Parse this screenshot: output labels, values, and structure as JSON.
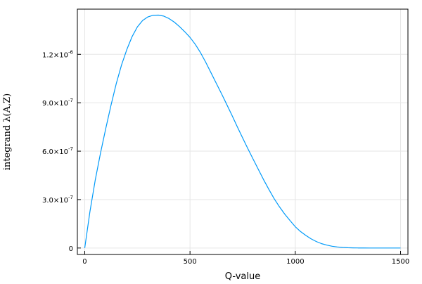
{
  "chart_data": {
    "type": "line",
    "title": "",
    "xlabel": "Q-value",
    "ylabel": "integrand λ(A,Z)",
    "xlim": [
      -35,
      1535
    ],
    "ylim": [
      -4e-08,
      1.48e-06
    ],
    "xticks": [
      {
        "value": 0,
        "label": "0"
      },
      {
        "value": 500,
        "label": "500"
      },
      {
        "value": 1000,
        "label": "1000"
      },
      {
        "value": 1500,
        "label": "1500"
      }
    ],
    "yticks": [
      {
        "value": 0,
        "mantissa": "0",
        "exponent": ""
      },
      {
        "value": 3e-07,
        "mantissa": "3.0×10",
        "exponent": "-7"
      },
      {
        "value": 6e-07,
        "mantissa": "6.0×10",
        "exponent": "-7"
      },
      {
        "value": 9e-07,
        "mantissa": "9.0×10",
        "exponent": "-7"
      },
      {
        "value": 1.2e-06,
        "mantissa": "1.2×10",
        "exponent": "-6"
      }
    ],
    "grid": true,
    "legend": "none",
    "colors": {
      "series": "#009af9",
      "grid": "#e6e6e6",
      "axis": "#000000"
    },
    "series": [
      {
        "x": [
          0,
          25,
          50,
          75,
          100,
          125,
          150,
          175,
          200,
          225,
          250,
          275,
          300,
          325,
          350,
          375,
          400,
          425,
          450,
          475,
          500,
          525,
          550,
          575,
          600,
          625,
          650,
          675,
          700,
          725,
          750,
          775,
          800,
          825,
          850,
          875,
          900,
          925,
          950,
          975,
          1000,
          1025,
          1050,
          1075,
          1100,
          1125,
          1150,
          1175,
          1200,
          1225,
          1250,
          1275,
          1300,
          1325,
          1350,
          1375,
          1400,
          1425,
          1450,
          1475,
          1500
        ],
        "y": [
          0,
          2.28e-07,
          4.22e-07,
          5.89e-07,
          7.41e-07,
          8.86e-07,
          1.02e-06,
          1.135e-06,
          1.23e-06,
          1.31e-06,
          1.37e-06,
          1.41e-06,
          1.432e-06,
          1.442e-06,
          1.443e-06,
          1.437e-06,
          1.422e-06,
          1.4e-06,
          1.372e-06,
          1.34e-06,
          1.305e-06,
          1.262e-06,
          1.21e-06,
          1.15e-06,
          1.085e-06,
          1.02e-06,
          9.55e-07,
          8.88e-07,
          8.2e-07,
          7.5e-07,
          6.82e-07,
          6.15e-07,
          5.5e-07,
          4.86e-07,
          4.22e-07,
          3.62e-07,
          3.05e-07,
          2.55e-07,
          2.1e-07,
          1.7e-07,
          1.32e-07,
          1.02e-07,
          7.8e-08,
          5.7e-08,
          4e-08,
          2.7e-08,
          1.8e-08,
          1.1e-08,
          6.5e-09,
          3.5e-09,
          1.8e-09,
          9e-10,
          4e-10,
          2e-10,
          1e-10,
          0,
          0,
          0,
          0,
          0,
          0
        ]
      }
    ]
  }
}
